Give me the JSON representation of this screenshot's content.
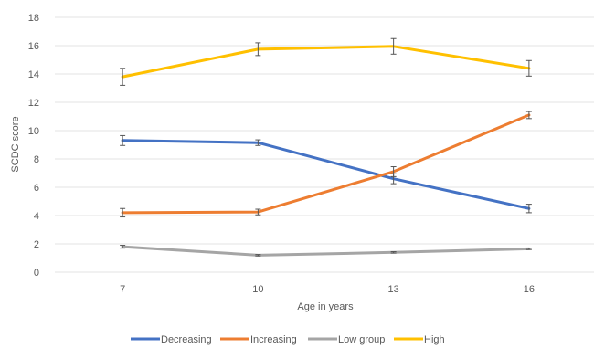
{
  "chart_data": {
    "type": "line",
    "title": "",
    "xlabel": "Age in years",
    "ylabel": "SCDC score",
    "categories": [
      "7",
      "10",
      "13",
      "16"
    ],
    "ylim": [
      0,
      18
    ],
    "ytick_step": 2,
    "grid": "horizontal",
    "legend_position": "bottom",
    "error_bars": true,
    "series": [
      {
        "name": "Decreasing",
        "color": "#4472C4",
        "values": [
          9.3,
          9.15,
          6.6,
          4.5
        ],
        "errors": [
          0.35,
          0.2,
          0.35,
          0.3
        ]
      },
      {
        "name": "Increasing",
        "color": "#ED7D31",
        "values": [
          4.2,
          4.25,
          7.1,
          11.1
        ],
        "errors": [
          0.3,
          0.2,
          0.35,
          0.25
        ]
      },
      {
        "name": "Low group",
        "color": "#A5A5A5",
        "values": [
          1.8,
          1.2,
          1.4,
          1.65
        ],
        "errors": [
          0.1,
          0.05,
          0.05,
          0.05
        ]
      },
      {
        "name": "High",
        "color": "#FFC000",
        "values": [
          13.8,
          15.75,
          15.95,
          14.4
        ],
        "errors": [
          0.6,
          0.45,
          0.55,
          0.55
        ]
      }
    ]
  }
}
